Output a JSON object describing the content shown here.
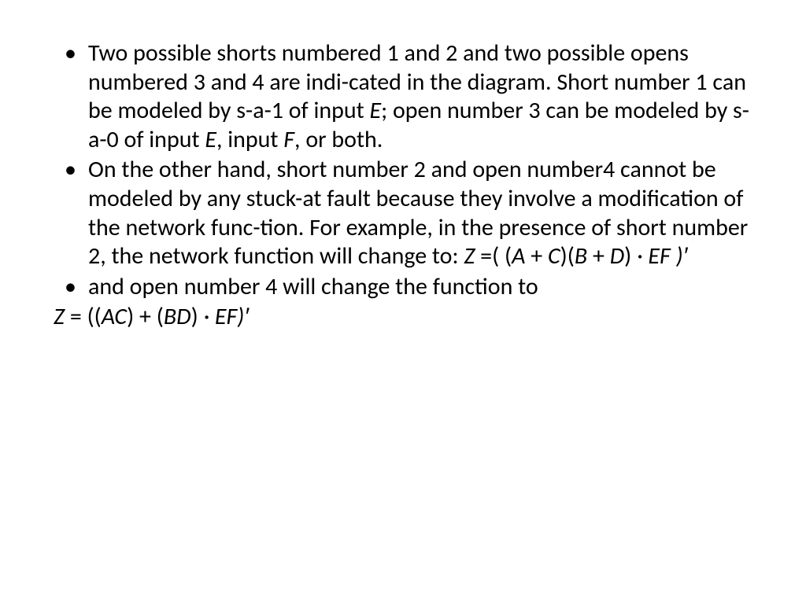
{
  "slide": {
    "background_color": "#ffffff",
    "text_color": "#000000",
    "font_family": "Calibri",
    "body_fontsize_pt": 22,
    "line_height": 1.22,
    "bullets": [
      {
        "segments": [
          {
            "t": "Two possible shorts numbered 1 and 2 and two possible opens numbered 3 and 4 are indi-cated in the diagram. Short number 1 can be modeled by s-a-1 of input ",
            "i": false
          },
          {
            "t": "E",
            "i": true
          },
          {
            "t": "; open number 3 can be modeled by s-a-0 of input ",
            "i": false
          },
          {
            "t": "E",
            "i": true
          },
          {
            "t": ", input ",
            "i": false
          },
          {
            "t": "F",
            "i": true
          },
          {
            "t": ", or both.",
            "i": false
          }
        ]
      },
      {
        "segments": [
          {
            "t": "On the other hand, short number 2 and open number4 cannot be modeled by any stuck-at fault because they involve a modification of the network func-tion. For example, in the presence of short number 2, the network function will change to: ",
            "i": false
          },
          {
            "t": "Z ",
            "i": true
          },
          {
            "t": "=( (",
            "i": false
          },
          {
            "t": "A ",
            "i": true
          },
          {
            "t": "+ ",
            "i": false
          },
          {
            "t": "C",
            "i": true
          },
          {
            "t": ")(",
            "i": false
          },
          {
            "t": "B ",
            "i": true
          },
          {
            "t": "+ ",
            "i": false
          },
          {
            "t": "D",
            "i": true
          },
          {
            "t": ") ",
            "i": false
          },
          {
            "t": "· EF )′",
            "i": true
          }
        ]
      },
      {
        "segments": [
          {
            "t": "and open number 4 will change the function to",
            "i": false
          }
        ]
      }
    ],
    "trailing_line": {
      "segments": [
        {
          "t": "Z ",
          "i": true
        },
        {
          "t": "= ((",
          "i": false
        },
        {
          "t": "AC",
          "i": true
        },
        {
          "t": ") + (",
          "i": false
        },
        {
          "t": "BD",
          "i": true
        },
        {
          "t": ") ",
          "i": false
        },
        {
          "t": "· EF)′",
          "i": true
        }
      ]
    }
  }
}
